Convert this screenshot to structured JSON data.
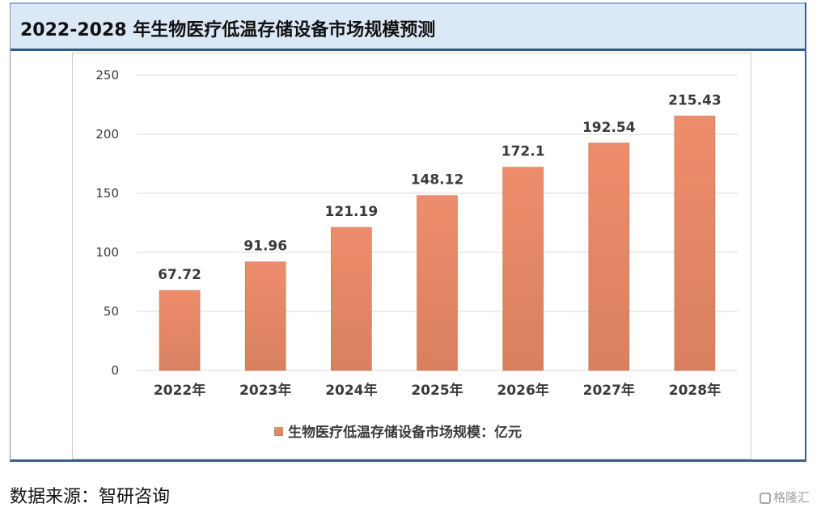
{
  "title": "2022-2028 年生物医疗低温存储设备市场规模预测",
  "source_text": "数据来源：智研咨询",
  "watermark_text": "格隆汇",
  "colors": {
    "bar_top": "#ee8d6c",
    "bar_bottom": "#d9805f",
    "title_bg": "#dbe8f5",
    "title_border": "#2f5a8f"
  },
  "chart_data": {
    "type": "bar",
    "title": "2022-2028 年生物医疗低温存储设备市场规模预测",
    "categories": [
      "2022年",
      "2023年",
      "2024年",
      "2025年",
      "2026年",
      "2027年",
      "2028年"
    ],
    "series": [
      {
        "name": "生物医疗低温存储设备市场规模：亿元",
        "values": [
          67.72,
          91.96,
          121.19,
          148.12,
          172.1,
          192.54,
          215.43
        ],
        "labels": [
          "67.72",
          "91.96",
          "121.19",
          "148.12",
          "172.1",
          "192.54",
          "215.43"
        ]
      }
    ],
    "ylim": [
      0,
      250
    ],
    "yticks": [
      0,
      50,
      100,
      150,
      200,
      250
    ],
    "grid": true,
    "legend_position": "bottom",
    "xlabel": "",
    "ylabel": ""
  }
}
